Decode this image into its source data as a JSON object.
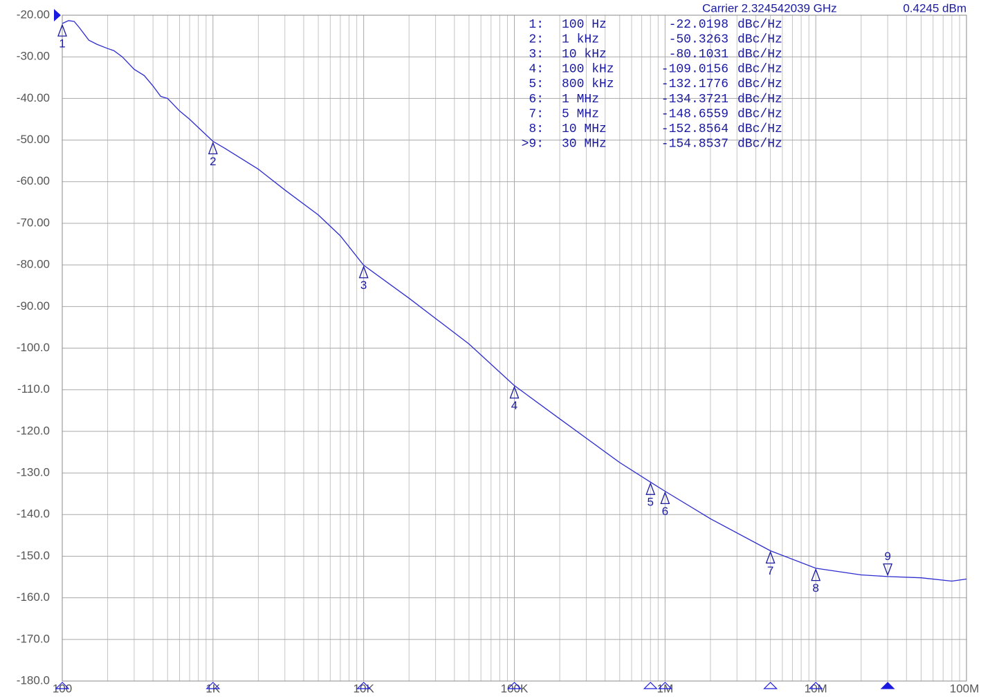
{
  "chart_data": {
    "type": "line",
    "carrier": "Carrier 2.324542039 GHz",
    "power": "0.4245 dBm",
    "xscale": "log",
    "grid": true,
    "xlim": [
      100,
      100000000
    ],
    "ylim": [
      -180,
      -20
    ],
    "xticks": [
      {
        "value": 100,
        "label": "100"
      },
      {
        "value": 1000,
        "label": "1K"
      },
      {
        "value": 10000,
        "label": "10K"
      },
      {
        "value": 100000,
        "label": "100K"
      },
      {
        "value": 1000000,
        "label": "1M"
      },
      {
        "value": 10000000,
        "label": "10M"
      },
      {
        "value": 100000000,
        "label": "100M"
      }
    ],
    "x_minor_ticks": [
      200,
      300,
      400,
      500,
      600,
      700,
      800,
      900,
      2000,
      3000,
      4000,
      5000,
      6000,
      7000,
      8000,
      9000,
      20000,
      30000,
      40000,
      50000,
      60000,
      70000,
      80000,
      90000,
      200000,
      300000,
      400000,
      500000,
      600000,
      700000,
      800000,
      900000,
      2000000,
      3000000,
      4000000,
      5000000,
      6000000,
      7000000,
      8000000,
      9000000,
      20000000,
      30000000,
      40000000,
      50000000,
      60000000,
      70000000,
      80000000,
      90000000
    ],
    "yticks": [
      {
        "value": -20,
        "label": "-20.00"
      },
      {
        "value": -30,
        "label": "-30.00"
      },
      {
        "value": -40,
        "label": "-40.00"
      },
      {
        "value": -50,
        "label": "-50.00"
      },
      {
        "value": -60,
        "label": "-60.00"
      },
      {
        "value": -70,
        "label": "-70.00"
      },
      {
        "value": -80,
        "label": "-80.00"
      },
      {
        "value": -90,
        "label": "-90.00"
      },
      {
        "value": -100,
        "label": "-100.0"
      },
      {
        "value": -110,
        "label": "-110.0"
      },
      {
        "value": -120,
        "label": "-120.0"
      },
      {
        "value": -130,
        "label": "-130.0"
      },
      {
        "value": -140,
        "label": "-140.0"
      },
      {
        "value": -150,
        "label": "-150.0"
      },
      {
        "value": -160,
        "label": "-160.0"
      },
      {
        "value": -170,
        "label": "-170.0"
      },
      {
        "value": -180,
        "label": "-180.0"
      }
    ],
    "trace": {
      "color": "#2b2bcf",
      "x": [
        100,
        110,
        120,
        130,
        150,
        170,
        200,
        220,
        250,
        300,
        350,
        400,
        450,
        500,
        600,
        700,
        800,
        1000,
        1200,
        2000,
        3000,
        5000,
        7000,
        10000,
        20000,
        50000,
        100000,
        200000,
        500000,
        800000,
        1000000,
        2000000,
        5000000,
        10000000,
        20000000,
        30000000,
        50000000,
        80000000,
        100000000
      ],
      "values": [
        -22,
        -21.3,
        -21.5,
        -23,
        -26,
        -27,
        -28,
        -28.5,
        -30,
        -33,
        -34.5,
        -37,
        -39.5,
        -40,
        -43,
        -45,
        -47,
        -50.3,
        -52,
        -57,
        -62,
        -68,
        -73,
        -80.1,
        -88,
        -99,
        -109,
        -117,
        -127.5,
        -132.2,
        -134.4,
        -141,
        -148.7,
        -152.9,
        -154.5,
        -154.9,
        -155.2,
        -156,
        -155.5
      ]
    },
    "markers": {
      "color": "#1a1aa0",
      "active": 8,
      "labels": [
        "1:",
        "2:",
        "3:",
        "4:",
        "5:",
        "6:",
        "7:",
        "8:",
        ">9:"
      ],
      "ids": [
        "1",
        "2",
        "3",
        "4",
        "5",
        "6",
        "7",
        "8",
        "9"
      ],
      "freq_labels": [
        "100 Hz",
        "1 kHz",
        "10 kHz",
        "100 kHz",
        "800 kHz",
        "1 MHz",
        "5 MHz",
        "10 MHz",
        "30 MHz"
      ],
      "x": [
        100,
        1000,
        10000,
        100000,
        800000,
        1000000,
        5000000,
        10000000,
        30000000
      ],
      "values": [
        -22.0198,
        -50.3263,
        -80.1031,
        -109.0156,
        -132.1776,
        -134.3721,
        -148.6559,
        -152.8564,
        -154.8537
      ],
      "unit": "dBc/Hz"
    }
  }
}
